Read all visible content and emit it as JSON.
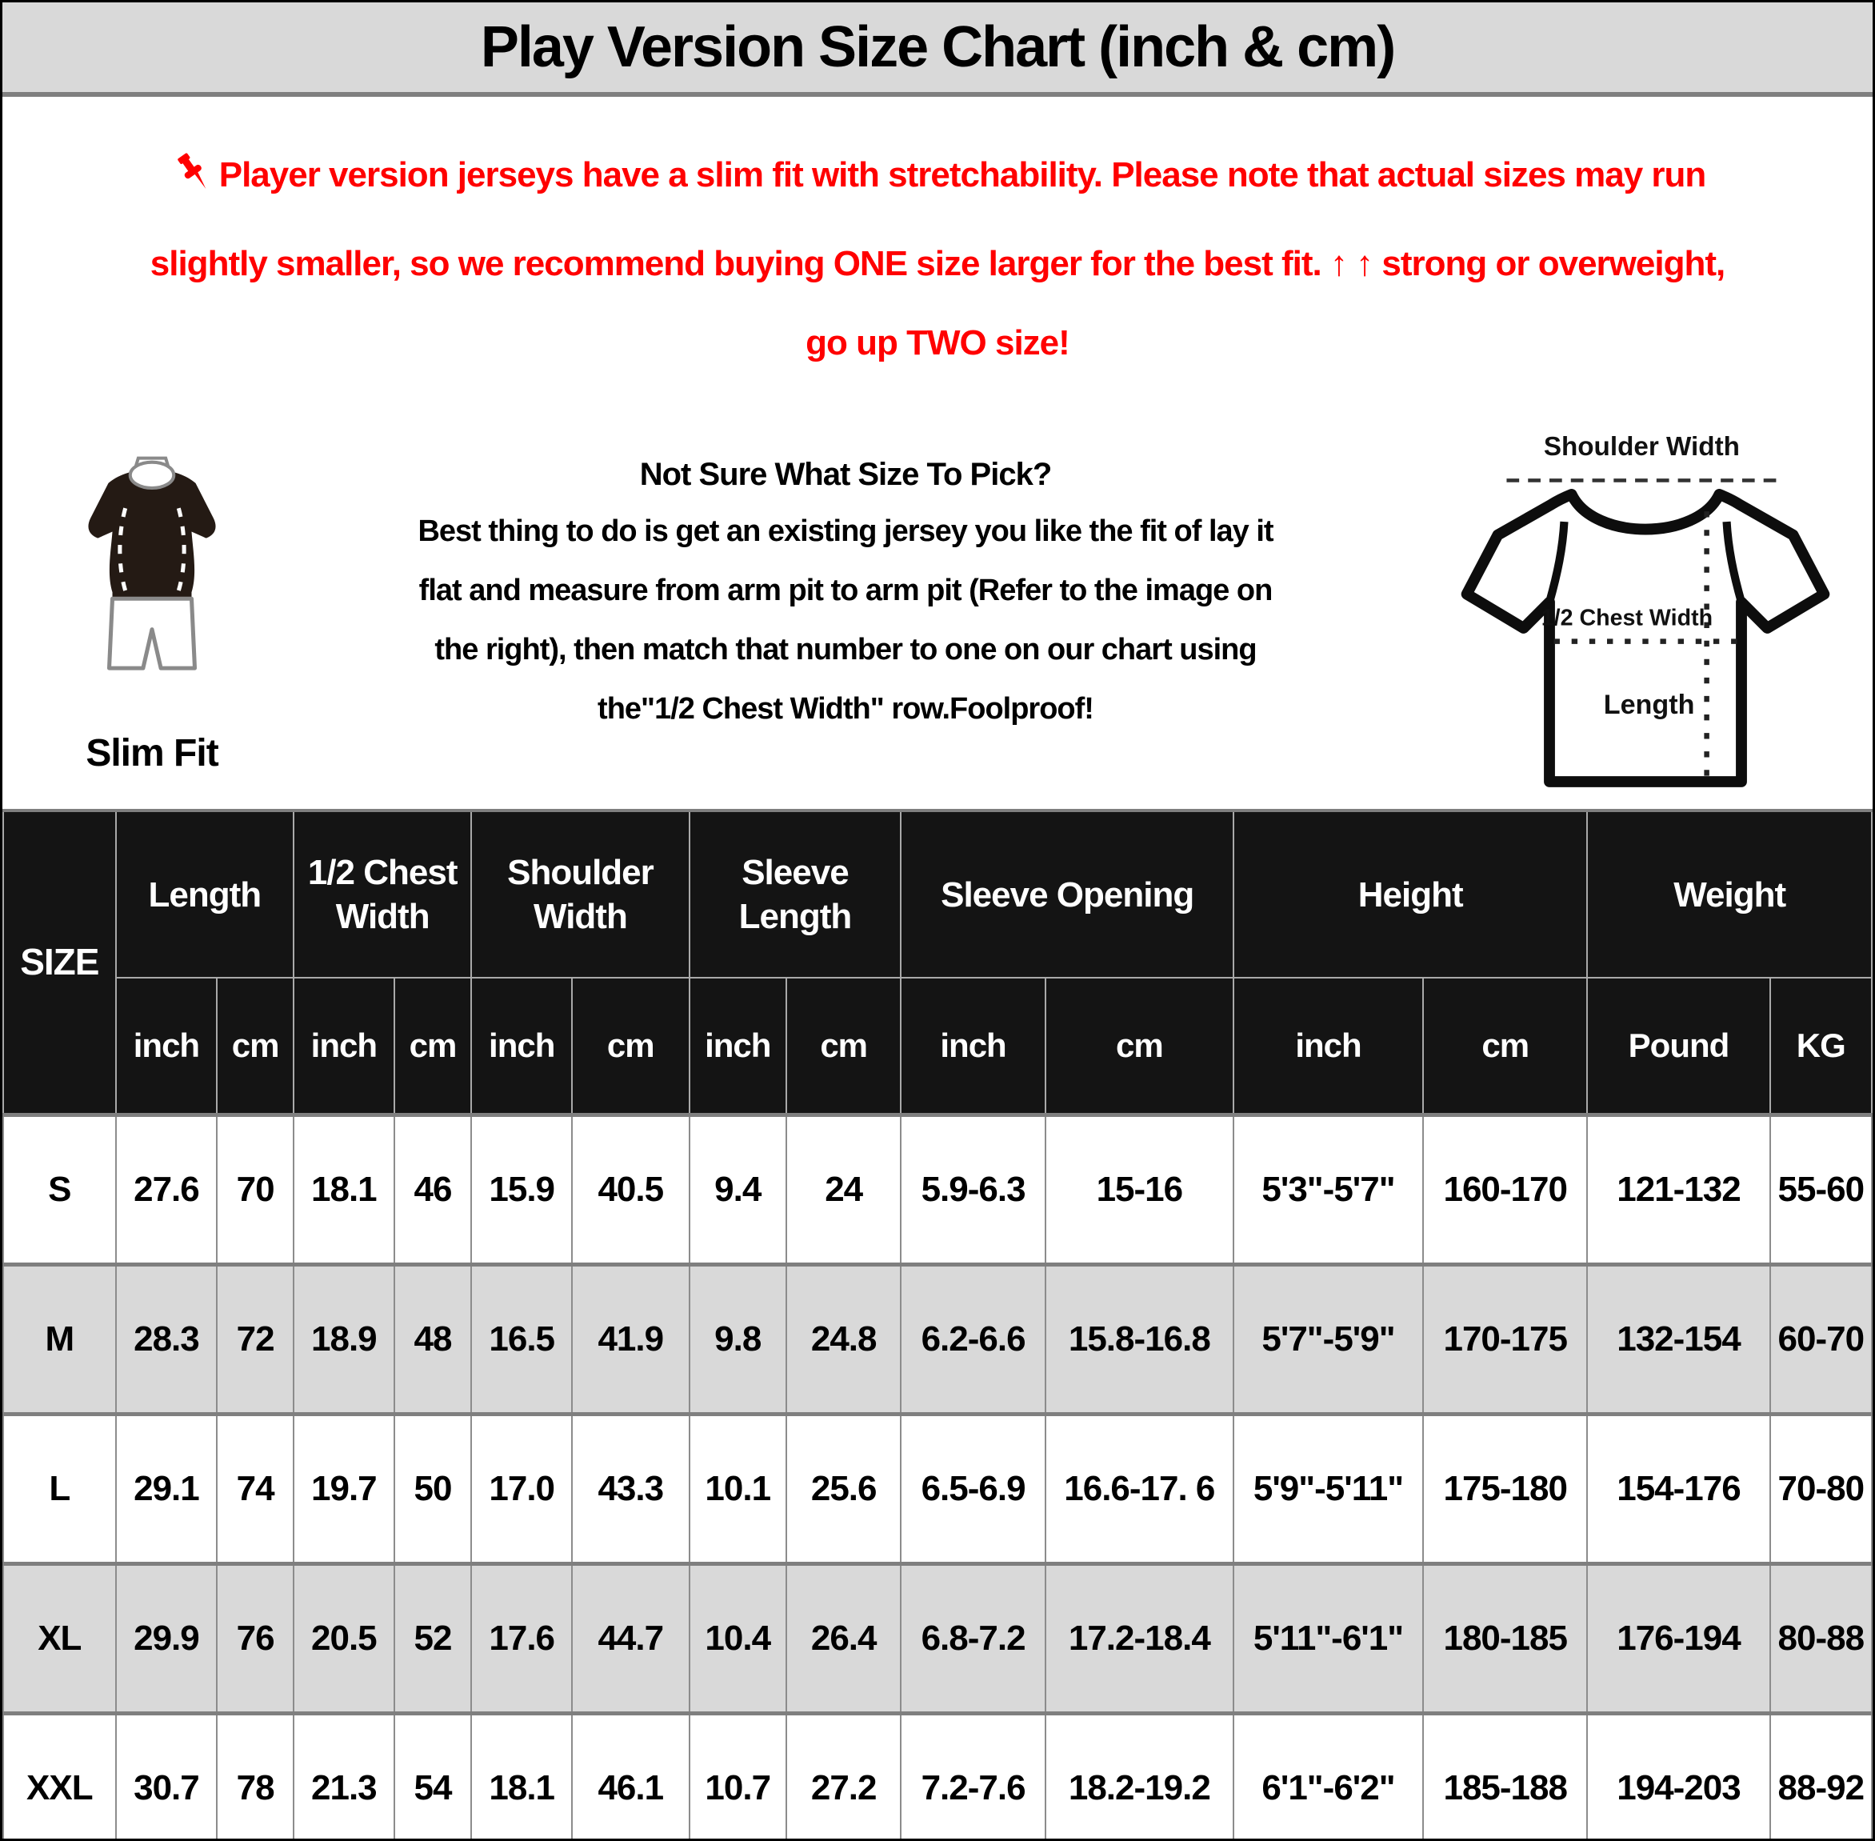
{
  "title": "Play Version Size Chart (inch & cm)",
  "notice": {
    "line1": "Player version jerseys have a slim fit with stretchability. Please note that actual sizes may run",
    "line2": "slightly smaller, so we recommend buying ONE size larger for the best fit. ↑ ↑ strong or overweight,",
    "line3": "go up TWO size!"
  },
  "fit": {
    "label": "Slim Fit"
  },
  "guide": {
    "heading": "Not Sure What Size To Pick?",
    "lines": [
      "Best thing to do is get an existing jersey you like the fit of lay it",
      "flat and measure from arm pit to arm pit (Refer to the image on",
      "the right), then match that number to one on our chart using",
      "the\"1/2 Chest Width\" row.Foolproof!"
    ]
  },
  "diagram": {
    "shoulder_width_label": "Shoulder Width",
    "half_chest_width_label": "1/2 Chest Width",
    "length_label": "Length"
  },
  "colors": {
    "accent_red": "#FF0000",
    "header_bg": "#141414",
    "band_gray": "#D9D9D9",
    "row_alt_gray": "#D9D9D9",
    "grid_line": "#8C8C8C"
  },
  "table": {
    "size_header": "SIZE",
    "groups": [
      {
        "label": "Length",
        "sub": [
          "inch",
          "cm"
        ]
      },
      {
        "label": "1/2 Chest Width",
        "sub": [
          "inch",
          "cm"
        ]
      },
      {
        "label": "Shoulder Width",
        "sub": [
          "inch",
          "cm"
        ]
      },
      {
        "label": "Sleeve Length",
        "sub": [
          "inch",
          "cm"
        ]
      },
      {
        "label": "Sleeve Opening",
        "sub": [
          "inch",
          "cm"
        ]
      },
      {
        "label": "Height",
        "sub": [
          "inch",
          "cm"
        ]
      },
      {
        "label": "Weight",
        "sub": [
          "Pound",
          "KG"
        ]
      }
    ],
    "rows": [
      {
        "size": "S",
        "values": [
          "27.6",
          "70",
          "18.1",
          "46",
          "15.9",
          "40.5",
          "9.4",
          "24",
          "5.9-6.3",
          "15-16",
          "5'3\"-5'7\"",
          "160-170",
          "121-132",
          "55-60"
        ]
      },
      {
        "size": "M",
        "values": [
          "28.3",
          "72",
          "18.9",
          "48",
          "16.5",
          "41.9",
          "9.8",
          "24.8",
          "6.2-6.6",
          "15.8-16.8",
          "5'7\"-5'9\"",
          "170-175",
          "132-154",
          "60-70"
        ]
      },
      {
        "size": "L",
        "values": [
          "29.1",
          "74",
          "19.7",
          "50",
          "17.0",
          "43.3",
          "10.1",
          "25.6",
          "6.5-6.9",
          "16.6-17. 6",
          "5'9\"-5'11\"",
          "175-180",
          "154-176",
          "70-80"
        ]
      },
      {
        "size": "XL",
        "values": [
          "29.9",
          "76",
          "20.5",
          "52",
          "17.6",
          "44.7",
          "10.4",
          "26.4",
          "6.8-7.2",
          "17.2-18.4",
          "5'11\"-6'1\"",
          "180-185",
          "176-194",
          "80-88"
        ]
      },
      {
        "size": "XXL",
        "values": [
          "30.7",
          "78",
          "21.3",
          "54",
          "18.1",
          "46.1",
          "10.7",
          "27.2",
          "7.2-7.6",
          "18.2-19.2",
          "6'1\"-6'2\"",
          "185-188",
          "194-203",
          "88-92"
        ]
      }
    ]
  },
  "chart_data": {
    "type": "table",
    "title": "Play Version Size Chart (inch & cm)",
    "columns": [
      "SIZE",
      "Length inch",
      "Length cm",
      "1/2 Chest Width inch",
      "1/2 Chest Width cm",
      "Shoulder Width inch",
      "Shoulder Width cm",
      "Sleeve Length inch",
      "Sleeve Length cm",
      "Sleeve Opening inch",
      "Sleeve Opening cm",
      "Height inch",
      "Height cm",
      "Weight Pound",
      "Weight KG"
    ],
    "rows": [
      [
        "S",
        "27.6",
        "70",
        "18.1",
        "46",
        "15.9",
        "40.5",
        "9.4",
        "24",
        "5.9-6.3",
        "15-16",
        "5'3\"-5'7\"",
        "160-170",
        "121-132",
        "55-60"
      ],
      [
        "M",
        "28.3",
        "72",
        "18.9",
        "48",
        "16.5",
        "41.9",
        "9.8",
        "24.8",
        "6.2-6.6",
        "15.8-16.8",
        "5'7\"-5'9\"",
        "170-175",
        "132-154",
        "60-70"
      ],
      [
        "L",
        "29.1",
        "74",
        "19.7",
        "50",
        "17.0",
        "43.3",
        "10.1",
        "25.6",
        "6.5-6.9",
        "16.6-17. 6",
        "5'9\"-5'11\"",
        "175-180",
        "154-176",
        "70-80"
      ],
      [
        "XL",
        "29.9",
        "76",
        "20.5",
        "52",
        "17.6",
        "44.7",
        "10.4",
        "26.4",
        "6.8-7.2",
        "17.2-18.4",
        "5'11\"-6'1\"",
        "180-185",
        "176-194",
        "80-88"
      ],
      [
        "XXL",
        "30.7",
        "78",
        "21.3",
        "54",
        "18.1",
        "46.1",
        "10.7",
        "27.2",
        "7.2-7.6",
        "18.2-19.2",
        "6'1\"-6'2\"",
        "185-188",
        "194-203",
        "88-92"
      ]
    ]
  }
}
